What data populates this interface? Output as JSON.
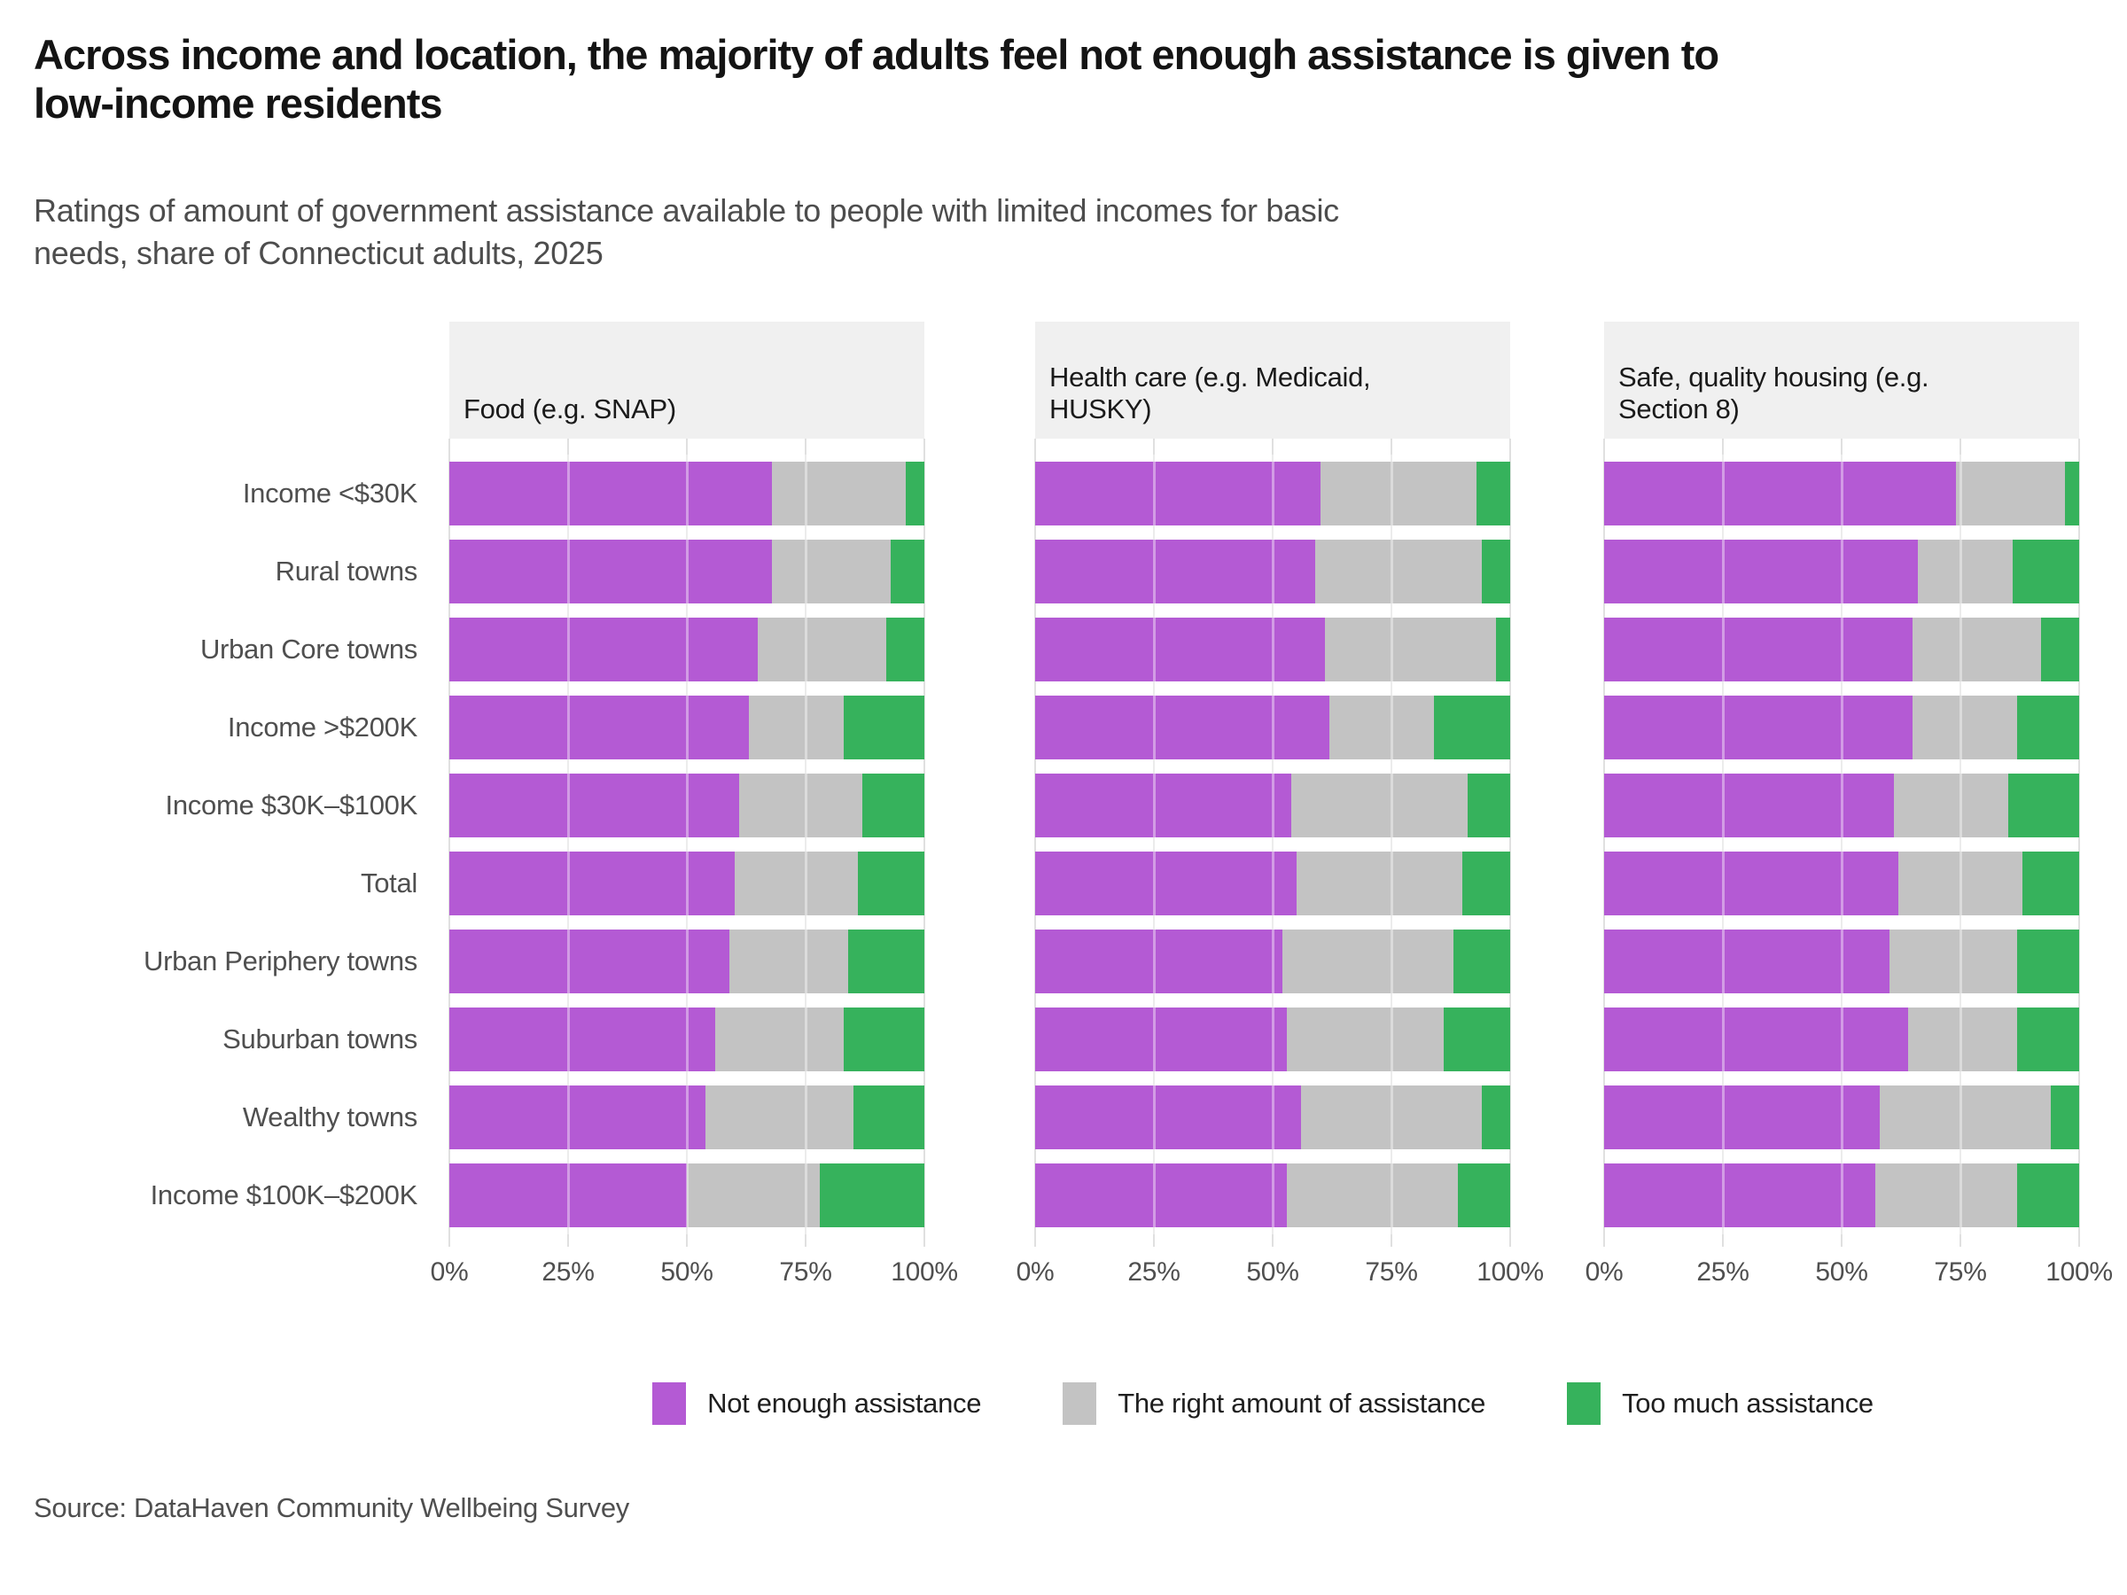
{
  "page": {
    "title_lines": [
      "Across income and location, the majority of adults feel not enough assistance is given to",
      "low-income residents"
    ],
    "subtitle_lines": [
      "Ratings of amount of government assistance available to people with limited incomes for basic",
      "needs, share of Connecticut adults, 2025"
    ],
    "source": "Source: DataHaven Community Wellbeing Survey"
  },
  "colors": {
    "not_enough": "#b45ad4",
    "right_amount": "#c3c3c3",
    "too_much": "#36b25c",
    "panel_header_bg": "#f0f0f0",
    "gridline": "#e0e0e0",
    "title_text": "#141414",
    "muted_text": "#4f4f4f"
  },
  "legend": {
    "items": [
      {
        "label": "Not enough assistance",
        "color": "#b45ad4"
      },
      {
        "label": "The right amount of assistance",
        "color": "#c3c3c3"
      },
      {
        "label": "Too much assistance",
        "color": "#36b25c"
      }
    ]
  },
  "chart_data": {
    "type": "bar",
    "orientation": "horizontal",
    "stacked": true,
    "unit": "percent",
    "x_range": [
      0,
      100
    ],
    "x_ticks": [
      "0%",
      "25%",
      "50%",
      "75%",
      "100%"
    ],
    "grid": true,
    "legend_position": "bottom",
    "categories": [
      "Income <$30K",
      "Rural towns",
      "Urban Core towns",
      "Income >$200K",
      "Income $30K–$100K",
      "Total",
      "Urban Periphery towns",
      "Suburban towns",
      "Wealthy towns",
      "Income $100K–$200K"
    ],
    "panels": [
      {
        "title": "Food (e.g. SNAP)",
        "title_lines": [
          "Food (e.g. SNAP)"
        ],
        "series": [
          {
            "name": "Not enough assistance",
            "color": "#b45ad4",
            "values": [
              68,
              68,
              65,
              63,
              61,
              60,
              59,
              56,
              54,
              50
            ]
          },
          {
            "name": "The right amount of assistance",
            "color": "#c3c3c3",
            "values": [
              28,
              25,
              27,
              20,
              26,
              26,
              25,
              27,
              31,
              28
            ]
          },
          {
            "name": "Too much assistance",
            "color": "#36b25c",
            "values": [
              4,
              7,
              8,
              17,
              13,
              14,
              16,
              17,
              15,
              22
            ]
          }
        ]
      },
      {
        "title": "Health care (e.g. Medicaid, HUSKY)",
        "title_lines": [
          "Health care (e.g. Medicaid,",
          "HUSKY)"
        ],
        "series": [
          {
            "name": "Not enough assistance",
            "color": "#b45ad4",
            "values": [
              60,
              59,
              61,
              62,
              54,
              55,
              52,
              53,
              56,
              53
            ]
          },
          {
            "name": "The right amount of assistance",
            "color": "#c3c3c3",
            "values": [
              33,
              35,
              36,
              22,
              37,
              35,
              36,
              33,
              38,
              36
            ]
          },
          {
            "name": "Too much assistance",
            "color": "#36b25c",
            "values": [
              7,
              6,
              3,
              16,
              9,
              10,
              12,
              14,
              6,
              11
            ]
          }
        ]
      },
      {
        "title": "Safe, quality housing (e.g. Section 8)",
        "title_lines": [
          "Safe, quality housing (e.g.",
          "Section 8)"
        ],
        "series": [
          {
            "name": "Not enough assistance",
            "color": "#b45ad4",
            "values": [
              74,
              66,
              65,
              65,
              61,
              62,
              60,
              64,
              58,
              57
            ]
          },
          {
            "name": "The right amount of assistance",
            "color": "#c3c3c3",
            "values": [
              23,
              20,
              27,
              22,
              24,
              26,
              27,
              23,
              36,
              30
            ]
          },
          {
            "name": "Too much assistance",
            "color": "#36b25c",
            "values": [
              3,
              14,
              8,
              13,
              15,
              12,
              13,
              13,
              6,
              13
            ]
          }
        ]
      }
    ]
  }
}
